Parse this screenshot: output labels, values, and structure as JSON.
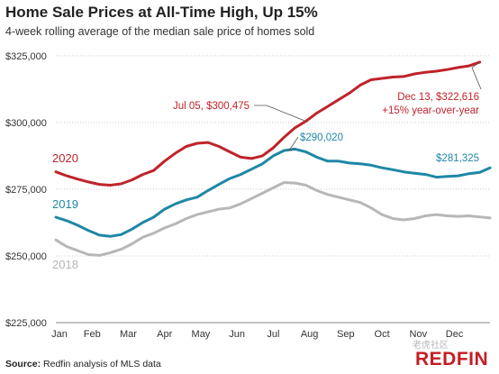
{
  "header": {
    "title": "Home Sale Prices at All-Time High, Up 15%",
    "subtitle": "4-week rolling average of the median sale price of homes sold"
  },
  "footer": {
    "source_label": "Source:",
    "source_text": "Redfin analysis of MLS data",
    "logo": "REDFIN",
    "watermark": "老虎社区"
  },
  "colors": {
    "2020": "#c0232b",
    "2019": "#1f87a6",
    "2018": "#b7b7b7",
    "grid": "#cccccc",
    "axis_text": "#333333"
  },
  "chart_data": {
    "type": "line",
    "title": "Home Sale Prices at All-Time High, Up 15%",
    "subtitle": "4-week rolling average of the median sale price of homes sold",
    "xlabel": "",
    "ylabel": "",
    "x_ticks": [
      "Jan",
      "Feb",
      "Mar",
      "Apr",
      "May",
      "Jun",
      "Jul",
      "Aug",
      "Sep",
      "Oct",
      "Nov",
      "Dec"
    ],
    "y_ticks": [
      "$225,000",
      "$250,000",
      "$275,000",
      "$300,000",
      "$325,000"
    ],
    "y_tick_values": [
      225000,
      250000,
      275000,
      300000,
      325000
    ],
    "ylim": [
      225000,
      329000
    ],
    "x_unit": "month index, 0 = Jan 1",
    "xlim": [
      0,
      11.98
    ],
    "grid": true,
    "series": [
      {
        "name": "2020",
        "x": [
          0.0,
          0.3,
          0.6,
          0.9,
          1.2,
          1.5,
          1.8,
          2.1,
          2.4,
          2.7,
          3.0,
          3.3,
          3.6,
          3.9,
          4.2,
          4.5,
          4.8,
          5.1,
          5.4,
          5.7,
          6.0,
          6.3,
          6.6,
          6.9,
          7.2,
          7.5,
          7.8,
          8.1,
          8.4,
          8.7,
          9.0,
          9.3,
          9.6,
          9.9,
          10.2,
          10.5,
          10.8,
          11.1,
          11.4,
          11.7
        ],
        "values": [
          281500,
          280000,
          278800,
          277700,
          276800,
          276500,
          277000,
          278500,
          280500,
          282000,
          285500,
          288500,
          291000,
          292200,
          292500,
          291000,
          289000,
          287000,
          286500,
          287500,
          290500,
          294500,
          298000,
          300475,
          303500,
          306000,
          308500,
          311000,
          314000,
          316000,
          316500,
          317000,
          317200,
          318200,
          318800,
          319200,
          319800,
          320600,
          321200,
          322616
        ]
      },
      {
        "name": "2019",
        "x": [
          0.0,
          0.3,
          0.6,
          0.9,
          1.2,
          1.5,
          1.8,
          2.1,
          2.4,
          2.7,
          3.0,
          3.3,
          3.6,
          3.9,
          4.2,
          4.5,
          4.8,
          5.1,
          5.4,
          5.7,
          6.0,
          6.3,
          6.6,
          6.9,
          7.2,
          7.5,
          7.8,
          8.1,
          8.4,
          8.7,
          9.0,
          9.3,
          9.6,
          9.9,
          10.2,
          10.5,
          10.8,
          11.1,
          11.4,
          11.7,
          11.98
        ],
        "values": [
          264500,
          263200,
          261500,
          259500,
          257800,
          257300,
          258000,
          260000,
          262500,
          264500,
          267500,
          269500,
          271000,
          272000,
          274500,
          276800,
          279000,
          280500,
          282500,
          284500,
          287500,
          289500,
          290020,
          289000,
          287000,
          285500,
          285500,
          284800,
          284500,
          284000,
          283000,
          282300,
          281500,
          281000,
          280500,
          279500,
          279800,
          280000,
          280800,
          281325,
          283000
        ]
      },
      {
        "name": "2018",
        "x": [
          0.0,
          0.3,
          0.6,
          0.9,
          1.2,
          1.5,
          1.8,
          2.1,
          2.4,
          2.7,
          3.0,
          3.3,
          3.6,
          3.9,
          4.2,
          4.5,
          4.8,
          5.1,
          5.4,
          5.7,
          6.0,
          6.3,
          6.6,
          6.9,
          7.2,
          7.5,
          7.8,
          8.1,
          8.4,
          8.7,
          9.0,
          9.3,
          9.6,
          9.9,
          10.2,
          10.5,
          10.8,
          11.1,
          11.4,
          11.7,
          11.98
        ],
        "values": [
          256000,
          253500,
          252000,
          250500,
          250200,
          251200,
          252500,
          254500,
          257000,
          258500,
          260500,
          262000,
          264000,
          265500,
          266500,
          267500,
          268000,
          269500,
          271500,
          273500,
          275500,
          277500,
          277300,
          276500,
          274500,
          273000,
          272000,
          271000,
          270000,
          268000,
          265500,
          264000,
          263500,
          264000,
          265000,
          265500,
          265000,
          264800,
          265000,
          264600,
          264200
        ]
      }
    ],
    "series_labels": [
      {
        "text": "2020",
        "series": "2020"
      },
      {
        "text": "2019",
        "series": "2019"
      },
      {
        "text": "2018",
        "series": "2018"
      }
    ],
    "annotations": [
      {
        "text": "Jul 05, $300,475",
        "x": 6.9,
        "y": 300475,
        "series": "2020"
      },
      {
        "text": "$290,020",
        "x": 6.6,
        "y": 290020,
        "series": "2019"
      },
      {
        "text": "$281,325",
        "x": 11.7,
        "y": 281325,
        "series": "2019"
      },
      {
        "text": "Dec 13, $322,616",
        "x": 11.7,
        "y": 322616,
        "series": "2020"
      },
      {
        "text": "+15% year-over-year",
        "x": 11.7,
        "y": 322616,
        "series": "2020"
      }
    ]
  }
}
